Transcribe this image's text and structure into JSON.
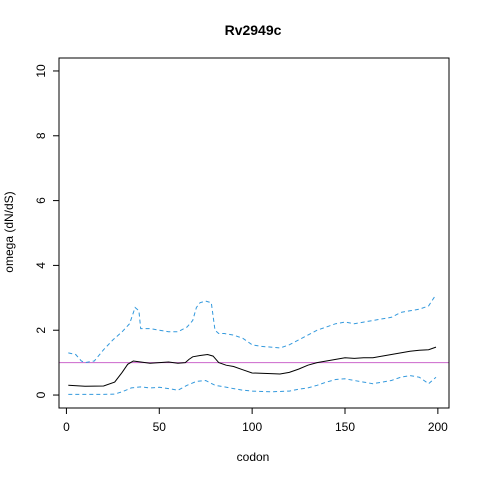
{
  "chart_data": {
    "type": "line",
    "title": "Rv2949c",
    "xlabel": "codon",
    "ylabel": "omega (dN/dS)",
    "xlim": [
      -4,
      206
    ],
    "ylim": [
      -0.4,
      10.4
    ],
    "xticks": [
      0,
      50,
      100,
      150,
      200
    ],
    "yticks": [
      0,
      2,
      4,
      6,
      8,
      10
    ],
    "grid": false,
    "legend": "none",
    "reference_line": {
      "y": 1.0,
      "color": "#cc66cc"
    },
    "series": [
      {
        "role": "estimate",
        "color": "#000000",
        "dash": "solid",
        "x": [
          1,
          10,
          20,
          26,
          30,
          33,
          36,
          40,
          45,
          50,
          55,
          60,
          64,
          66,
          68,
          72,
          76,
          79,
          82,
          86,
          90,
          95,
          100,
          110,
          115,
          120,
          125,
          130,
          135,
          140,
          145,
          150,
          155,
          160,
          165,
          170,
          175,
          180,
          185,
          190,
          195,
          199
        ],
        "y": [
          0.3,
          0.27,
          0.28,
          0.4,
          0.7,
          0.95,
          1.05,
          1.02,
          0.98,
          1.0,
          1.02,
          0.98,
          1.0,
          1.1,
          1.18,
          1.22,
          1.25,
          1.2,
          1.0,
          0.92,
          0.88,
          0.78,
          0.68,
          0.66,
          0.65,
          0.7,
          0.8,
          0.92,
          1.0,
          1.05,
          1.1,
          1.15,
          1.13,
          1.15,
          1.15,
          1.2,
          1.25,
          1.3,
          1.35,
          1.38,
          1.4,
          1.48
        ]
      },
      {
        "role": "upper-bound",
        "color": "#3399dd",
        "dash": "dashed",
        "x": [
          1,
          5,
          8,
          10,
          15,
          20,
          25,
          30,
          34,
          37,
          39,
          40,
          45,
          50,
          55,
          60,
          65,
          68,
          70,
          72,
          75,
          78,
          80,
          82,
          85,
          90,
          95,
          100,
          105,
          110,
          115,
          120,
          125,
          130,
          135,
          140,
          145,
          150,
          155,
          160,
          165,
          170,
          175,
          180,
          185,
          190,
          195,
          199
        ],
        "y": [
          1.3,
          1.25,
          1.05,
          1.0,
          1.05,
          1.4,
          1.7,
          1.95,
          2.2,
          2.7,
          2.6,
          2.05,
          2.05,
          2.0,
          1.95,
          1.95,
          2.1,
          2.3,
          2.7,
          2.85,
          2.9,
          2.85,
          2.0,
          1.9,
          1.9,
          1.85,
          1.75,
          1.55,
          1.5,
          1.48,
          1.45,
          1.55,
          1.7,
          1.85,
          2.0,
          2.1,
          2.2,
          2.25,
          2.2,
          2.25,
          2.3,
          2.35,
          2.4,
          2.55,
          2.6,
          2.65,
          2.75,
          3.1
        ]
      },
      {
        "role": "lower-bound",
        "color": "#3399dd",
        "dash": "dashed",
        "x": [
          1,
          10,
          20,
          26,
          30,
          35,
          40,
          45,
          50,
          55,
          60,
          65,
          70,
          75,
          80,
          85,
          90,
          95,
          100,
          110,
          120,
          125,
          130,
          135,
          140,
          145,
          150,
          155,
          160,
          165,
          170,
          175,
          180,
          185,
          190,
          195,
          199
        ],
        "y": [
          0.02,
          0.02,
          0.02,
          0.03,
          0.1,
          0.22,
          0.25,
          0.22,
          0.24,
          0.2,
          0.15,
          0.3,
          0.42,
          0.45,
          0.3,
          0.25,
          0.2,
          0.15,
          0.12,
          0.1,
          0.12,
          0.18,
          0.22,
          0.3,
          0.4,
          0.48,
          0.5,
          0.45,
          0.4,
          0.35,
          0.4,
          0.45,
          0.55,
          0.6,
          0.55,
          0.35,
          0.55
        ]
      }
    ]
  }
}
